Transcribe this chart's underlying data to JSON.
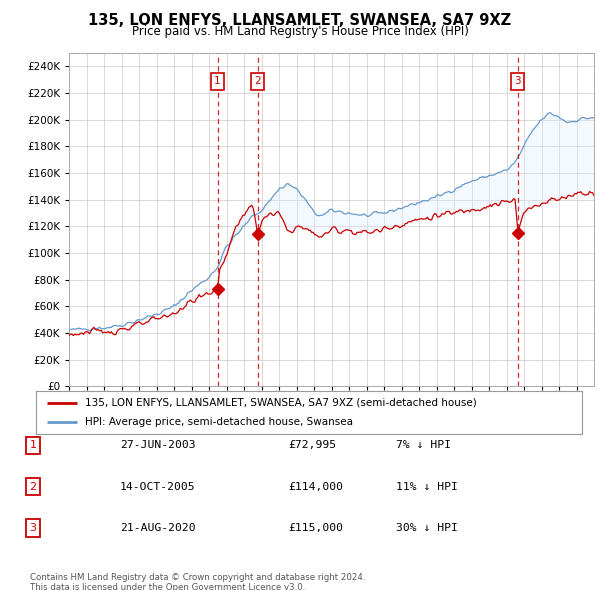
{
  "title": "135, LON ENFYS, LLANSAMLET, SWANSEA, SA7 9XZ",
  "subtitle": "Price paid vs. HM Land Registry's House Price Index (HPI)",
  "ylim": [
    0,
    250000
  ],
  "yticks": [
    0,
    20000,
    40000,
    60000,
    80000,
    100000,
    120000,
    140000,
    160000,
    180000,
    200000,
    220000,
    240000
  ],
  "xlim_start": 1995,
  "xlim_end": 2025,
  "sale_dates_num": [
    2003.49,
    2005.79,
    2020.64
  ],
  "sale_prices": [
    72995,
    114000,
    115000
  ],
  "sale_labels": [
    "1",
    "2",
    "3"
  ],
  "sale_info": [
    {
      "label": "1",
      "date": "27-JUN-2003",
      "price": "£72,995",
      "pct": "7% ↓ HPI"
    },
    {
      "label": "2",
      "date": "14-OCT-2005",
      "price": "£114,000",
      "pct": "11% ↓ HPI"
    },
    {
      "label": "3",
      "date": "21-AUG-2020",
      "price": "£115,000",
      "pct": "30% ↓ HPI"
    }
  ],
  "legend_red": "135, LON ENFYS, LLANSAMLET, SWANSEA, SA7 9XZ (semi-detached house)",
  "legend_blue": "HPI: Average price, semi-detached house, Swansea",
  "footer": "Contains HM Land Registry data © Crown copyright and database right 2024.\nThis data is licensed under the Open Government Licence v3.0.",
  "red_color": "#cc0000",
  "blue_color": "#6699cc",
  "shade_color": "#ddeeff",
  "background_color": "#ffffff",
  "grid_color": "#cccccc",
  "hpi_key_points": [
    [
      1995.0,
      42000
    ],
    [
      1996.0,
      43500
    ],
    [
      1997.0,
      44000
    ],
    [
      1998.0,
      46000
    ],
    [
      1999.0,
      50000
    ],
    [
      2000.0,
      54000
    ],
    [
      2001.0,
      60000
    ],
    [
      2002.0,
      72000
    ],
    [
      2003.0,
      82000
    ],
    [
      2003.5,
      90000
    ],
    [
      2004.0,
      105000
    ],
    [
      2005.0,
      120000
    ],
    [
      2005.5,
      128000
    ],
    [
      2006.0,
      132000
    ],
    [
      2007.0,
      148000
    ],
    [
      2007.5,
      152000
    ],
    [
      2008.0,
      148000
    ],
    [
      2008.5,
      140000
    ],
    [
      2009.0,
      130000
    ],
    [
      2009.5,
      128000
    ],
    [
      2010.0,
      132000
    ],
    [
      2011.0,
      130000
    ],
    [
      2012.0,
      128000
    ],
    [
      2013.0,
      130000
    ],
    [
      2014.0,
      134000
    ],
    [
      2015.0,
      138000
    ],
    [
      2016.0,
      142000
    ],
    [
      2017.0,
      148000
    ],
    [
      2018.0,
      154000
    ],
    [
      2019.0,
      158000
    ],
    [
      2020.0,
      162000
    ],
    [
      2020.5,
      168000
    ],
    [
      2021.0,
      180000
    ],
    [
      2021.5,
      192000
    ],
    [
      2022.0,
      200000
    ],
    [
      2022.5,
      205000
    ],
    [
      2023.0,
      202000
    ],
    [
      2023.5,
      198000
    ],
    [
      2024.0,
      200000
    ],
    [
      2025.0,
      202000
    ]
  ],
  "prop_key_points": [
    [
      1995.0,
      39000
    ],
    [
      1996.0,
      40500
    ],
    [
      1997.0,
      41000
    ],
    [
      1998.0,
      43000
    ],
    [
      1999.0,
      46000
    ],
    [
      2000.0,
      50000
    ],
    [
      2001.0,
      55000
    ],
    [
      2002.0,
      64000
    ],
    [
      2003.0,
      70000
    ],
    [
      2003.49,
      72995
    ],
    [
      2003.6,
      85000
    ],
    [
      2004.0,
      100000
    ],
    [
      2004.5,
      118000
    ],
    [
      2005.0,
      130000
    ],
    [
      2005.5,
      135000
    ],
    [
      2005.79,
      114000
    ],
    [
      2006.0,
      125000
    ],
    [
      2006.5,
      128000
    ],
    [
      2007.0,
      130000
    ],
    [
      2007.5,
      116000
    ],
    [
      2008.0,
      120000
    ],
    [
      2008.5,
      118000
    ],
    [
      2009.0,
      115000
    ],
    [
      2009.5,
      112000
    ],
    [
      2010.0,
      118000
    ],
    [
      2011.0,
      117000
    ],
    [
      2012.0,
      115000
    ],
    [
      2013.0,
      118000
    ],
    [
      2014.0,
      122000
    ],
    [
      2015.0,
      125000
    ],
    [
      2016.0,
      128000
    ],
    [
      2017.0,
      130000
    ],
    [
      2018.0,
      133000
    ],
    [
      2019.0,
      136000
    ],
    [
      2020.0,
      138000
    ],
    [
      2020.5,
      140000
    ],
    [
      2020.64,
      115000
    ],
    [
      2021.0,
      130000
    ],
    [
      2021.5,
      135000
    ],
    [
      2022.0,
      138000
    ],
    [
      2022.5,
      140000
    ],
    [
      2023.0,
      140000
    ],
    [
      2023.5,
      143000
    ],
    [
      2024.0,
      145000
    ],
    [
      2025.0,
      146000
    ]
  ]
}
